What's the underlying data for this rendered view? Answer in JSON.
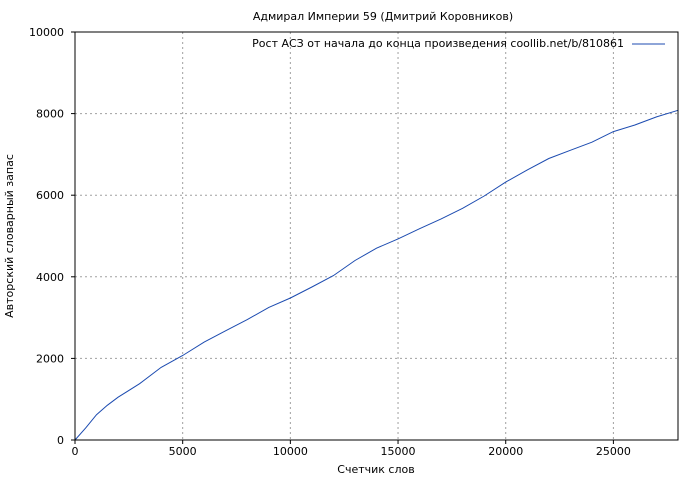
{
  "chart_data": {
    "type": "line",
    "title": "Адмирал Империи 59 (Дмитрий Коровников)",
    "xlabel": "Счетчик слов",
    "ylabel": "Авторский словарный запас",
    "xlim": [
      0,
      28000
    ],
    "ylim": [
      0,
      10000
    ],
    "xticks": [
      0,
      5000,
      10000,
      15000,
      20000,
      25000
    ],
    "yticks": [
      0,
      2000,
      4000,
      6000,
      8000,
      10000
    ],
    "grid": true,
    "legend_position": "top-right",
    "series": [
      {
        "name": "Рост АСЗ от начала до конца произведения coollib.net/b/810861",
        "color": "#1c4bb0",
        "x": [
          0,
          500,
          1000,
          1500,
          2000,
          3000,
          4000,
          5000,
          6000,
          7000,
          8000,
          9000,
          10000,
          11000,
          12000,
          13000,
          14000,
          15000,
          16000,
          17000,
          18000,
          19000,
          20000,
          21000,
          22000,
          23000,
          24000,
          25000,
          26000,
          27000,
          28000
        ],
        "y": [
          0,
          300,
          620,
          850,
          1050,
          1380,
          1780,
          2070,
          2400,
          2680,
          2950,
          3250,
          3480,
          3750,
          4030,
          4400,
          4700,
          4930,
          5180,
          5420,
          5680,
          5980,
          6320,
          6620,
          6900,
          7100,
          7300,
          7560,
          7720,
          7920,
          8080
        ]
      }
    ]
  }
}
